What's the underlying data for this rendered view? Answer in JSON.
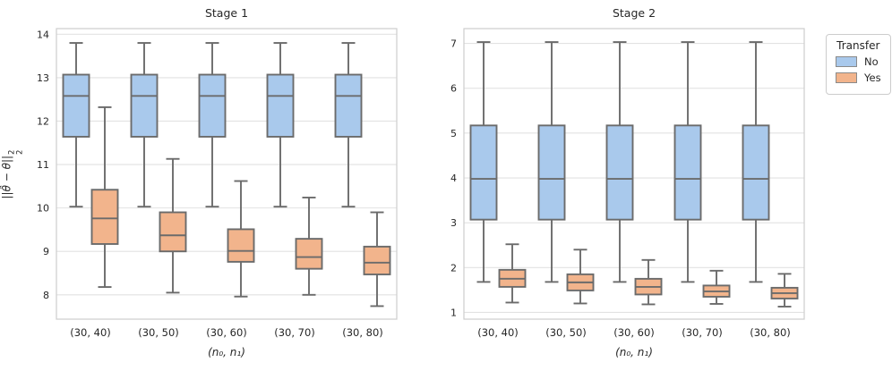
{
  "legend": {
    "title": "Transfer",
    "items": [
      {
        "label": "No",
        "color": "#a9c9ec"
      },
      {
        "label": "Yes",
        "color": "#f2b48c"
      }
    ]
  },
  "style": {
    "no_fill": "#a9c9ec",
    "yes_fill": "#f2b48c",
    "box_edge": "#6b6b6b",
    "gridline": "#e2e2e2",
    "spine": "#cfcfcf",
    "text": "#262626"
  },
  "chart_data": [
    {
      "type": "boxplot",
      "title": "Stage 1",
      "xlabel": "(n₀, n₁)",
      "ylabel": "||θ̂ − θ||₂²",
      "ylabel_parts": {
        "base": "||θ̂ − θ||",
        "sup": "2",
        "sub": "2"
      },
      "categories": [
        "(30, 40)",
        "(30, 50)",
        "(30, 60)",
        "(30, 70)",
        "(30, 80)"
      ],
      "ylim": [
        7.44,
        14.13
      ],
      "yticks": [
        8,
        9,
        10,
        11,
        12,
        13,
        14
      ],
      "grid": "horizontal",
      "legend_position": "outside-top-right",
      "series": [
        {
          "name": "No",
          "color": "#a9c9ec",
          "boxes": [
            {
              "whislo": 10.03,
              "q1": 11.64,
              "med": 12.58,
              "q3": 13.07,
              "whishi": 13.8
            },
            {
              "whislo": 10.03,
              "q1": 11.64,
              "med": 12.58,
              "q3": 13.07,
              "whishi": 13.8
            },
            {
              "whislo": 10.03,
              "q1": 11.64,
              "med": 12.58,
              "q3": 13.07,
              "whishi": 13.8
            },
            {
              "whislo": 10.03,
              "q1": 11.64,
              "med": 12.58,
              "q3": 13.07,
              "whishi": 13.8
            },
            {
              "whislo": 10.03,
              "q1": 11.64,
              "med": 12.58,
              "q3": 13.07,
              "whishi": 13.8
            }
          ]
        },
        {
          "name": "Yes",
          "color": "#f2b48c",
          "boxes": [
            {
              "whislo": 8.18,
              "q1": 9.17,
              "med": 9.76,
              "q3": 10.42,
              "whishi": 12.32
            },
            {
              "whislo": 8.05,
              "q1": 9.0,
              "med": 9.37,
              "q3": 9.9,
              "whishi": 11.13
            },
            {
              "whislo": 7.96,
              "q1": 8.76,
              "med": 9.01,
              "q3": 9.51,
              "whishi": 10.62
            },
            {
              "whislo": 8.0,
              "q1": 8.6,
              "med": 8.87,
              "q3": 9.29,
              "whishi": 10.24
            },
            {
              "whislo": 7.74,
              "q1": 8.47,
              "med": 8.74,
              "q3": 9.11,
              "whishi": 9.9
            }
          ]
        }
      ]
    },
    {
      "type": "boxplot",
      "title": "Stage 2",
      "xlabel": "(n₀, n₁)",
      "ylabel": "",
      "categories": [
        "(30, 40)",
        "(30, 50)",
        "(30, 60)",
        "(30, 70)",
        "(30, 80)"
      ],
      "ylim": [
        0.85,
        7.33
      ],
      "yticks": [
        1,
        2,
        3,
        4,
        5,
        6,
        7
      ],
      "grid": "horizontal",
      "series": [
        {
          "name": "No",
          "color": "#a9c9ec",
          "boxes": [
            {
              "whislo": 1.68,
              "q1": 3.07,
              "med": 3.98,
              "q3": 5.17,
              "whishi": 7.03
            },
            {
              "whislo": 1.68,
              "q1": 3.07,
              "med": 3.98,
              "q3": 5.17,
              "whishi": 7.03
            },
            {
              "whislo": 1.68,
              "q1": 3.07,
              "med": 3.98,
              "q3": 5.17,
              "whishi": 7.03
            },
            {
              "whislo": 1.68,
              "q1": 3.07,
              "med": 3.98,
              "q3": 5.17,
              "whishi": 7.03
            },
            {
              "whislo": 1.68,
              "q1": 3.07,
              "med": 3.98,
              "q3": 5.17,
              "whishi": 7.03
            }
          ]
        },
        {
          "name": "Yes",
          "color": "#f2b48c",
          "boxes": [
            {
              "whislo": 1.22,
              "q1": 1.57,
              "med": 1.75,
              "q3": 1.95,
              "whishi": 2.52
            },
            {
              "whislo": 1.2,
              "q1": 1.49,
              "med": 1.67,
              "q3": 1.85,
              "whishi": 2.4
            },
            {
              "whislo": 1.18,
              "q1": 1.4,
              "med": 1.57,
              "q3": 1.75,
              "whishi": 2.17
            },
            {
              "whislo": 1.19,
              "q1": 1.35,
              "med": 1.47,
              "q3": 1.6,
              "whishi": 1.93
            },
            {
              "whislo": 1.13,
              "q1": 1.31,
              "med": 1.43,
              "q3": 1.55,
              "whishi": 1.86
            }
          ]
        }
      ]
    }
  ]
}
